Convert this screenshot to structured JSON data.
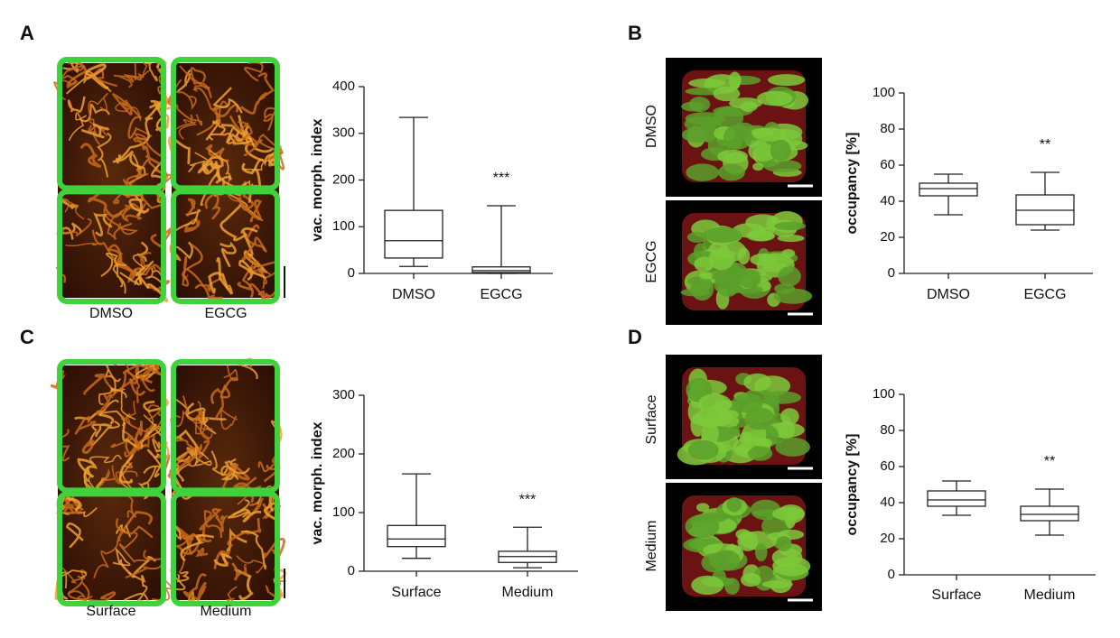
{
  "panels": [
    {
      "label": "A",
      "image_labels": [
        "DMSO",
        "EGCG"
      ]
    },
    {
      "label": "B",
      "image_labels": [
        "DMSO",
        "EGCG"
      ]
    },
    {
      "label": "C",
      "image_labels": [
        "Surface",
        "Medium"
      ]
    },
    {
      "label": "D",
      "image_labels": [
        "Surface",
        "Medium"
      ]
    }
  ],
  "chart_data": [
    {
      "type": "box",
      "y_label": "vac. morph. index",
      "categories": [
        "DMSO",
        "EGCG"
      ],
      "boxes": [
        {
          "min": 15,
          "q1": 33,
          "median": 70,
          "q3": 135,
          "max": 334
        },
        {
          "min": 0,
          "q1": 2,
          "median": 6,
          "q3": 14,
          "max": 145
        }
      ],
      "annotation": "***",
      "ylim": [
        0,
        400
      ],
      "yticks": [
        0,
        100,
        200,
        300,
        400
      ]
    },
    {
      "type": "box",
      "y_label": "occupancy [%]",
      "categories": [
        "DMSO",
        "EGCG"
      ],
      "boxes": [
        {
          "min": 32.5,
          "q1": 43,
          "median": 47,
          "q3": 50,
          "max": 55
        },
        {
          "min": 24,
          "q1": 27,
          "median": 35,
          "q3": 43.5,
          "max": 56
        }
      ],
      "annotation": "**",
      "ylim": [
        0,
        100
      ],
      "yticks": [
        0,
        20,
        40,
        60,
        80,
        100
      ]
    },
    {
      "type": "box",
      "y_label": "vac. morph. index",
      "categories": [
        "Surface",
        "Medium"
      ],
      "boxes": [
        {
          "min": 22,
          "q1": 42,
          "median": 55,
          "q3": 78,
          "max": 166
        },
        {
          "min": 6,
          "q1": 15,
          "median": 25,
          "q3": 34,
          "max": 75
        }
      ],
      "annotation": "***",
      "ylim": [
        0,
        300
      ],
      "yticks": [
        0,
        100,
        200,
        300
      ]
    },
    {
      "type": "box",
      "y_label": "occupancy [%]",
      "categories": [
        "Surface",
        "Medium"
      ],
      "boxes": [
        {
          "min": 33,
          "q1": 38,
          "median": 41.5,
          "q3": 46.5,
          "max": 52
        },
        {
          "min": 22,
          "q1": 30,
          "median": 33.5,
          "q3": 38,
          "max": 47.5
        }
      ],
      "annotation": "**",
      "ylim": [
        0,
        100
      ],
      "yticks": [
        0,
        20,
        40,
        60,
        80,
        100
      ]
    }
  ]
}
